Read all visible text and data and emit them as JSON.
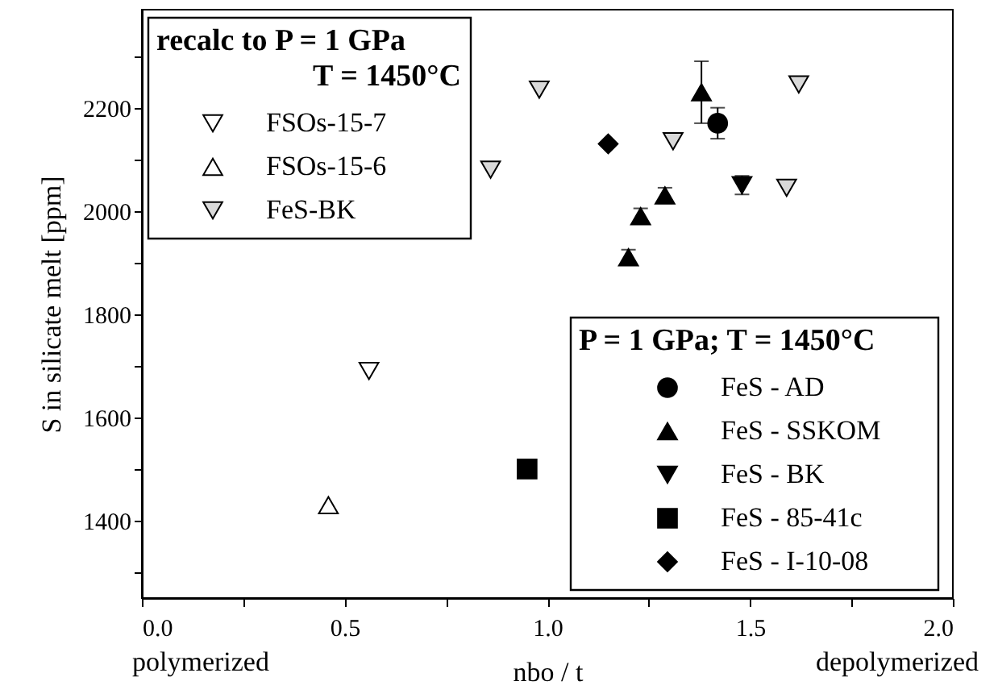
{
  "chart_data": {
    "type": "scatter",
    "xlabel": "nbo / t",
    "ylabel": "S in silicate melt [ppm]",
    "xlim": [
      0,
      2
    ],
    "ylim": [
      1250,
      2390
    ],
    "xticks": [
      {
        "value": 0,
        "label": "0.0"
      },
      {
        "value": 0.25,
        "label": null
      },
      {
        "value": 0.5,
        "label": "0.5"
      },
      {
        "value": 0.75,
        "label": null
      },
      {
        "value": 1,
        "label": "1.0"
      },
      {
        "value": 1.25,
        "label": null
      },
      {
        "value": 1.5,
        "label": "1.5"
      },
      {
        "value": 1.75,
        "label": null
      },
      {
        "value": 2,
        "label": "2.0"
      }
    ],
    "yticks": [
      {
        "value": 1300,
        "label": null
      },
      1400,
      {
        "value": 1500,
        "label": null
      },
      1600,
      {
        "value": 1700,
        "label": null
      },
      1800,
      {
        "value": 1900,
        "label": null
      },
      2000,
      {
        "value": 2100,
        "label": null
      },
      2200,
      {
        "value": 2300,
        "label": null
      }
    ],
    "grid": false,
    "legend": [
      "top left",
      "bottom right"
    ],
    "legend_title": [
      "recalc to P = 1  GPa\nT = 1450°C",
      "P = 1 GPa; T = 1450°C"
    ],
    "annotations": [
      "polymerized",
      "depolymerized"
    ],
    "series": [
      {
        "name": "FSOs-15-7",
        "color": "#ffffff",
        "marker": "triangle-down",
        "x": [
          0.56
        ],
        "values": [
          1690
        ]
      },
      {
        "name": "FSOs-15-6",
        "color": "#ffffff",
        "marker": "triangle",
        "x": [
          0.46
        ],
        "values": [
          1430
        ]
      },
      {
        "name": "FeS-BK",
        "color": "#d9d9d9",
        "marker": "triangle-down",
        "x": [
          0.86,
          0.98,
          1.31,
          1.59,
          1.62
        ],
        "values": [
          2080,
          2235,
          2135,
          2045,
          2245
        ]
      },
      {
        "name": "FeS - AD",
        "color": "#000000",
        "marker": "circle",
        "x": [
          1.42
        ],
        "values": [
          2170
        ],
        "errors": [
          30
        ]
      },
      {
        "name": "FeS - SSKOM",
        "color": "#000000",
        "marker": "triangle",
        "x": [
          1.2,
          1.23,
          1.29,
          1.38
        ],
        "values": [
          1910,
          1990,
          2030,
          2230
        ],
        "errors": [
          15,
          15,
          15,
          [
            2170,
            2290
          ]
        ]
      },
      {
        "name": "FeS - BK",
        "color": "#000000",
        "marker": "triangle-down",
        "x": [
          1.48
        ],
        "values": [
          2050
        ],
        "errors": [
          18
        ]
      },
      {
        "name": "FeS - 85-41c",
        "color": "#000000",
        "marker": "square",
        "x": [
          0.95
        ],
        "values": [
          1500
        ]
      },
      {
        "name": "FeS - I-10-08",
        "color": "#000000",
        "marker": "diamond",
        "x": [
          1.15
        ],
        "values": [
          2130
        ]
      }
    ]
  }
}
